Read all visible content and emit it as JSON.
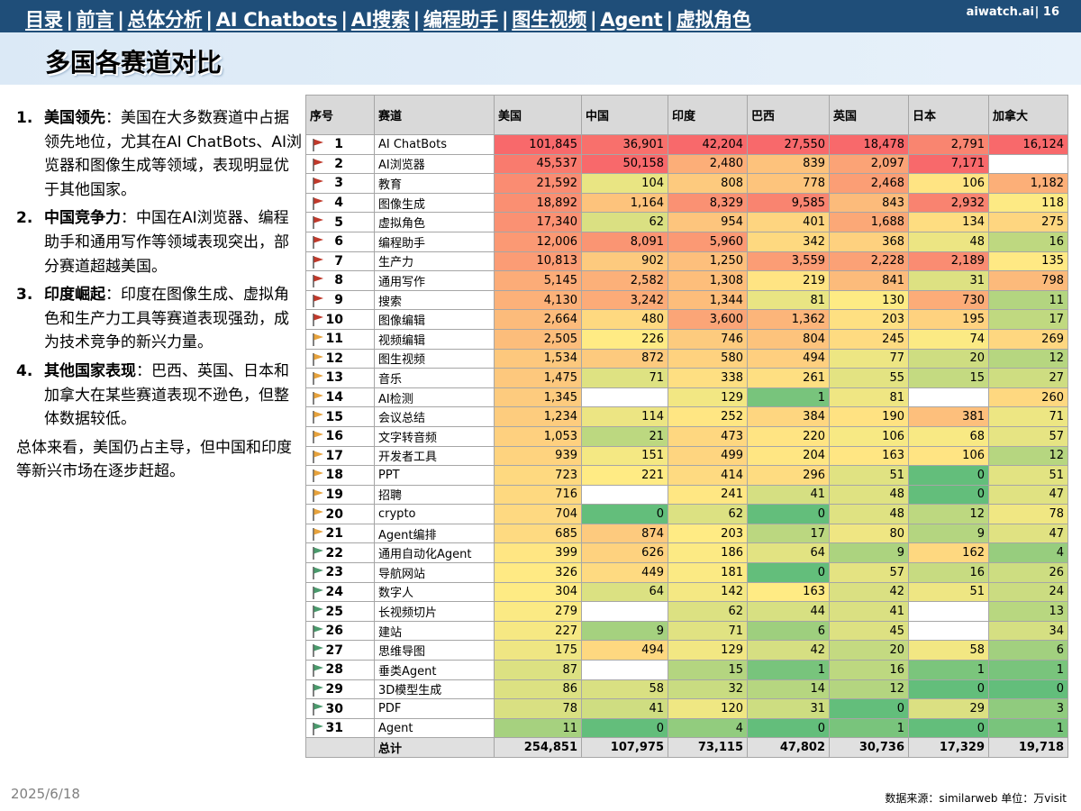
{
  "nav": {
    "items": [
      "目录",
      "前言",
      "总体分析",
      "AI Chatbots",
      "AI搜索",
      "编程助手",
      "图生视频",
      "Agent",
      "虚拟角色"
    ]
  },
  "brand": "aiwatch.ai",
  "page_number": "16",
  "title": "多国各赛道对比",
  "bullets": [
    {
      "num": "1.",
      "head": "美国领先",
      "text": "：美国在大多数赛道中占据领先地位，尤其在AI ChatBots、AI浏览器和图像生成等领域，表现明显优于其他国家。"
    },
    {
      "num": "2.",
      "head": "中国竞争力",
      "text": "：中国在AI浏览器、编程助手和通用写作等领域表现突出，部分赛道超越美国。"
    },
    {
      "num": "3.",
      "head": "印度崛起",
      "text": "：印度在图像生成、虚拟角色和生产力工具等赛道表现强劲，成为技术竞争的新兴力量。"
    },
    {
      "num": "4.",
      "head": "其他国家表现",
      "text": "：巴西、英国、日本和加拿大在某些赛道表现不逊色，但整体数据较低。"
    }
  ],
  "summary": "总体来看，美国仍占主导，但中国和印度等新兴市场在逐步赶超。",
  "table": {
    "headers": [
      "序号",
      "赛道",
      "美国",
      "中国",
      "印度",
      "巴西",
      "英国",
      "日本",
      "加拿大"
    ],
    "rows": [
      {
        "idx": "1",
        "name": "AI ChatBots",
        "values": [
          "101,845",
          "36,901",
          "42,204",
          "27,550",
          "18,478",
          "2,791",
          "16,124"
        ]
      },
      {
        "idx": "2",
        "name": "AI浏览器",
        "values": [
          "45,537",
          "50,158",
          "2,480",
          "839",
          "2,097",
          "7,171",
          ""
        ]
      },
      {
        "idx": "3",
        "name": "教育",
        "values": [
          "21,592",
          "104",
          "808",
          "778",
          "2,468",
          "106",
          "1,182"
        ]
      },
      {
        "idx": "4",
        "name": "图像生成",
        "values": [
          "18,892",
          "1,164",
          "8,329",
          "9,585",
          "843",
          "2,932",
          "118"
        ]
      },
      {
        "idx": "5",
        "name": "虚拟角色",
        "values": [
          "17,340",
          "62",
          "954",
          "401",
          "1,688",
          "134",
          "275"
        ]
      },
      {
        "idx": "6",
        "name": "编程助手",
        "values": [
          "12,006",
          "8,091",
          "5,960",
          "342",
          "368",
          "48",
          "16"
        ]
      },
      {
        "idx": "7",
        "name": "生产力",
        "values": [
          "10,813",
          "902",
          "1,250",
          "3,559",
          "2,228",
          "2,189",
          "135"
        ]
      },
      {
        "idx": "8",
        "name": "通用写作",
        "values": [
          "5,145",
          "2,582",
          "1,308",
          "219",
          "841",
          "31",
          "798"
        ]
      },
      {
        "idx": "9",
        "name": "搜索",
        "values": [
          "4,130",
          "3,242",
          "1,344",
          "81",
          "130",
          "730",
          "11"
        ]
      },
      {
        "idx": "10",
        "name": "图像编辑",
        "values": [
          "2,664",
          "480",
          "3,600",
          "1,362",
          "203",
          "195",
          "17"
        ]
      },
      {
        "idx": "11",
        "name": "视频编辑",
        "values": [
          "2,505",
          "226",
          "746",
          "804",
          "245",
          "74",
          "269"
        ]
      },
      {
        "idx": "12",
        "name": "图生视频",
        "values": [
          "1,534",
          "872",
          "580",
          "494",
          "77",
          "20",
          "12"
        ]
      },
      {
        "idx": "13",
        "name": "音乐",
        "values": [
          "1,475",
          "71",
          "338",
          "261",
          "55",
          "15",
          "27"
        ]
      },
      {
        "idx": "14",
        "name": "AI检测",
        "values": [
          "1,345",
          "",
          "129",
          "1",
          "81",
          "",
          "260"
        ]
      },
      {
        "idx": "15",
        "name": "会议总结",
        "values": [
          "1,234",
          "114",
          "252",
          "384",
          "190",
          "381",
          "71"
        ]
      },
      {
        "idx": "16",
        "name": "文字转音频",
        "values": [
          "1,053",
          "21",
          "473",
          "220",
          "106",
          "68",
          "57"
        ]
      },
      {
        "idx": "17",
        "name": "开发者工具",
        "values": [
          "939",
          "151",
          "499",
          "204",
          "163",
          "106",
          "12"
        ]
      },
      {
        "idx": "18",
        "name": "PPT",
        "values": [
          "723",
          "221",
          "414",
          "296",
          "51",
          "0",
          "51"
        ]
      },
      {
        "idx": "19",
        "name": "招聘",
        "values": [
          "716",
          "",
          "241",
          "41",
          "48",
          "0",
          "47"
        ]
      },
      {
        "idx": "20",
        "name": "crypto",
        "values": [
          "704",
          "0",
          "62",
          "0",
          "48",
          "12",
          "78"
        ]
      },
      {
        "idx": "21",
        "name": "Agent编排",
        "values": [
          "685",
          "874",
          "203",
          "17",
          "80",
          "9",
          "47"
        ]
      },
      {
        "idx": "22",
        "name": "通用自动化Agent",
        "values": [
          "399",
          "626",
          "186",
          "64",
          "9",
          "162",
          "4"
        ]
      },
      {
        "idx": "23",
        "name": "导航网站",
        "values": [
          "326",
          "449",
          "181",
          "0",
          "57",
          "16",
          "26"
        ]
      },
      {
        "idx": "24",
        "name": "数字人",
        "values": [
          "304",
          "64",
          "142",
          "163",
          "42",
          "51",
          "24"
        ]
      },
      {
        "idx": "25",
        "name": "长视频切片",
        "values": [
          "279",
          "",
          "62",
          "44",
          "41",
          "",
          "13"
        ]
      },
      {
        "idx": "26",
        "name": "建站",
        "values": [
          "227",
          "9",
          "71",
          "6",
          "45",
          "",
          "34"
        ]
      },
      {
        "idx": "27",
        "name": "思维导图",
        "values": [
          "175",
          "494",
          "129",
          "42",
          "20",
          "58",
          "6"
        ]
      },
      {
        "idx": "28",
        "name": "垂类Agent",
        "values": [
          "87",
          "",
          "15",
          "1",
          "16",
          "1",
          "1"
        ]
      },
      {
        "idx": "29",
        "name": "3D模型生成",
        "values": [
          "86",
          "58",
          "32",
          "14",
          "12",
          "0",
          "0"
        ]
      },
      {
        "idx": "30",
        "name": "PDF",
        "values": [
          "78",
          "41",
          "120",
          "31",
          "0",
          "29",
          "3"
        ]
      },
      {
        "idx": "31",
        "name": "Agent",
        "values": [
          "11",
          "0",
          "4",
          "0",
          "1",
          "0",
          "1"
        ]
      }
    ],
    "total_label": "总计",
    "totals": [
      "254,851",
      "107,975",
      "73,115",
      "47,802",
      "30,736",
      "17,329",
      "19,718"
    ],
    "flag_colors": {
      "red": "#c0392b",
      "orange": "#e6a23c",
      "green": "#4a9a6c"
    }
  },
  "date": "2025/6/18",
  "source": "数据来源：similarweb 单位：万visit"
}
